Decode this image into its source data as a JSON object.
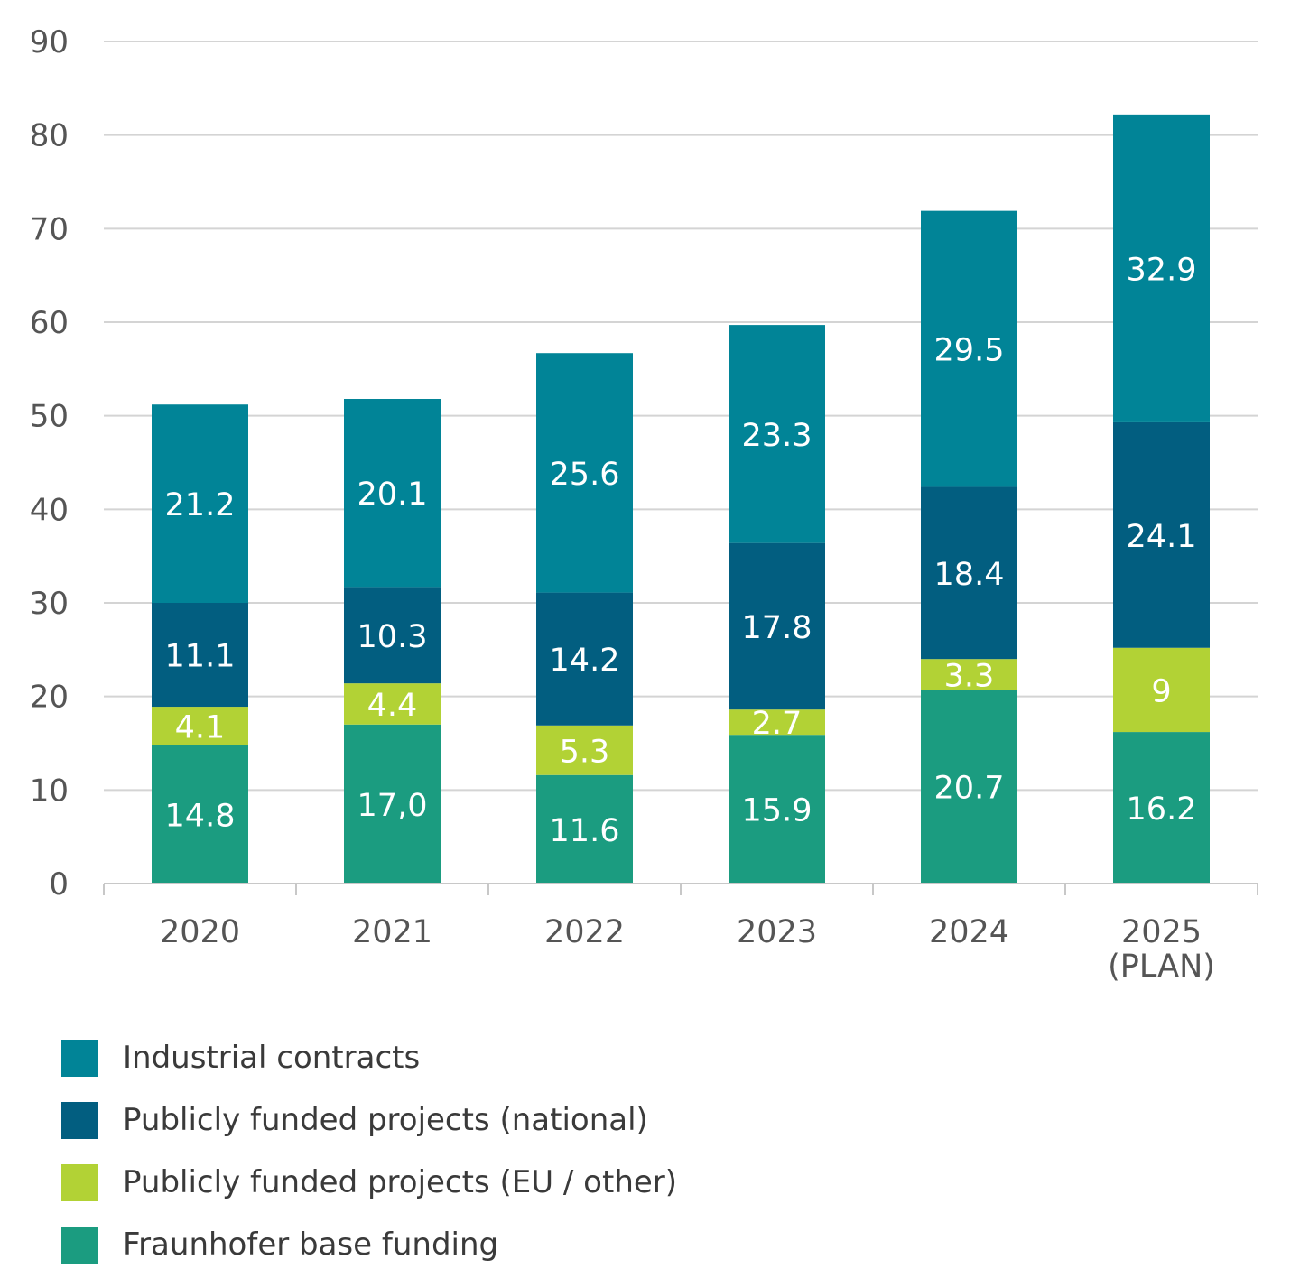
{
  "chart_data": {
    "type": "bar",
    "stacked": true,
    "title": "",
    "xlabel": "",
    "ylabel": "",
    "ylim": [
      0,
      90
    ],
    "yticks": [
      "0",
      "10",
      "20",
      "30",
      "40",
      "50",
      "60",
      "70",
      "80",
      "90"
    ],
    "grid": true,
    "legend_position": "bottom-left",
    "categories": [
      [
        "2020"
      ],
      [
        "2021"
      ],
      [
        "2022"
      ],
      [
        "2023"
      ],
      [
        "2024"
      ],
      [
        "2025",
        "(PLAN)"
      ]
    ],
    "series": [
      {
        "name": "Fraunhofer base funding",
        "color": "#1b9c80",
        "values": [
          14.8,
          17.0,
          11.6,
          15.9,
          20.7,
          16.2
        ],
        "labels": [
          "14.8",
          "17,0",
          "11.6",
          "15.9",
          "20.7",
          "16.2"
        ]
      },
      {
        "name": "Publicly funded projects (EU / other)",
        "color": "#b2d235",
        "values": [
          4.1,
          4.4,
          5.3,
          2.7,
          3.3,
          9
        ],
        "labels": [
          "4.1",
          "4.4",
          "5.3",
          "2.7",
          "3.3",
          "9"
        ]
      },
      {
        "name": "Publicly funded projects (national)",
        "color": "#025e80",
        "values": [
          11.1,
          10.3,
          14.2,
          17.8,
          18.4,
          24.1
        ],
        "labels": [
          "11.1",
          "10.3",
          "14.2",
          "17.8",
          "18.4",
          "24.1"
        ]
      },
      {
        "name": "Industrial contracts",
        "color": "#018497",
        "values": [
          21.2,
          20.1,
          25.6,
          23.3,
          29.5,
          32.9
        ],
        "labels": [
          "21.2",
          "20.1",
          "25.6",
          "23.3",
          "29.5",
          "32.9"
        ]
      }
    ],
    "legend": [
      {
        "name": "Industrial contracts",
        "color": "#018497"
      },
      {
        "name": "Publicly funded projects (national)",
        "color": "#025e80"
      },
      {
        "name": "Publicly funded projects (EU / other)",
        "color": "#b2d235"
      },
      {
        "name": "Fraunhofer base funding",
        "color": "#1b9c80"
      }
    ]
  }
}
